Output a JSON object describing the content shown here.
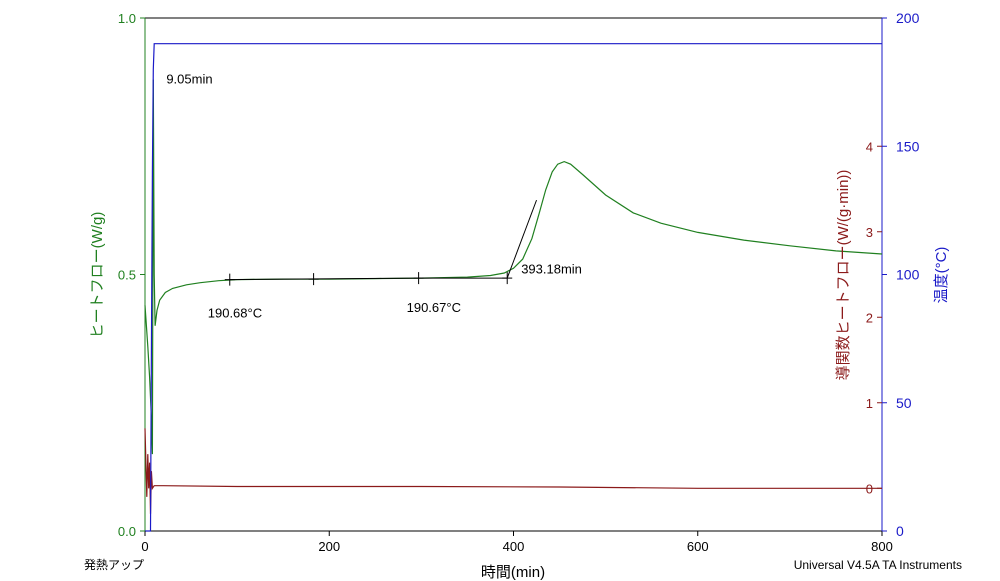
{
  "chart_data": {
    "type": "line",
    "xlabel": "時間(min)",
    "xlim": [
      0,
      800
    ],
    "x_ticks": [
      "0",
      "200",
      "400",
      "600",
      "800"
    ],
    "axes": {
      "left": {
        "label": "ヒートフロー(W/g)",
        "range": [
          0.0,
          1.0
        ],
        "ticks": [
          "0.0",
          "0.5",
          "1.0"
        ],
        "color": "#208020"
      },
      "right_inner": {
        "label": "導関数ヒートフロー(W/(g·min))",
        "range": [
          -0.5,
          5.5
        ],
        "ticks": [
          "0",
          "1",
          "2",
          "3",
          "4"
        ],
        "color": "#8b1a1a"
      },
      "right_outer": {
        "label": "温度(°C)",
        "range": [
          0,
          200
        ],
        "ticks": [
          "0",
          "50",
          "100",
          "150",
          "200"
        ],
        "color": "#1a1ac8"
      }
    },
    "series": [
      {
        "axis": "left",
        "color": "#208020",
        "points": [
          [
            0,
            0.44
          ],
          [
            3,
            0.36
          ],
          [
            5,
            0.3
          ],
          [
            7,
            0.22
          ],
          [
            8,
            0.15
          ],
          [
            9.05,
            0.88
          ],
          [
            10,
            0.5
          ],
          [
            11,
            0.4
          ],
          [
            13,
            0.43
          ],
          [
            16,
            0.45
          ],
          [
            22,
            0.465
          ],
          [
            30,
            0.473
          ],
          [
            45,
            0.48
          ],
          [
            60,
            0.484
          ],
          [
            80,
            0.488
          ],
          [
            100,
            0.49
          ],
          [
            150,
            0.491
          ],
          [
            200,
            0.491
          ],
          [
            250,
            0.492
          ],
          [
            300,
            0.493
          ],
          [
            350,
            0.495
          ],
          [
            375,
            0.498
          ],
          [
            390,
            0.503
          ],
          [
            400,
            0.512
          ],
          [
            410,
            0.53
          ],
          [
            420,
            0.57
          ],
          [
            428,
            0.62
          ],
          [
            435,
            0.665
          ],
          [
            442,
            0.7
          ],
          [
            448,
            0.715
          ],
          [
            455,
            0.72
          ],
          [
            462,
            0.715
          ],
          [
            475,
            0.695
          ],
          [
            500,
            0.655
          ],
          [
            530,
            0.62
          ],
          [
            560,
            0.6
          ],
          [
            600,
            0.582
          ],
          [
            650,
            0.567
          ],
          [
            700,
            0.556
          ],
          [
            750,
            0.546
          ],
          [
            800,
            0.54
          ]
        ]
      },
      {
        "axis": "right_inner",
        "color": "#8b1a1a",
        "points": [
          [
            0,
            0.7
          ],
          [
            2,
            -0.1
          ],
          [
            3,
            0.4
          ],
          [
            4,
            0.0
          ],
          [
            5,
            0.3
          ],
          [
            6,
            -0.3
          ],
          [
            7,
            0.2
          ],
          [
            8,
            0.0
          ],
          [
            10,
            0.03
          ],
          [
            20,
            0.03
          ],
          [
            100,
            0.02
          ],
          [
            300,
            0.02
          ],
          [
            450,
            0.015
          ],
          [
            600,
            0.0
          ],
          [
            800,
            0.0
          ]
        ]
      },
      {
        "axis": "right_outer",
        "color": "#1a1ac8",
        "points": [
          [
            0,
            0
          ],
          [
            6,
            0
          ],
          [
            7,
            70
          ],
          [
            8,
            140
          ],
          [
            9,
            180
          ],
          [
            10,
            190
          ],
          [
            800,
            190
          ]
        ]
      }
    ],
    "annotations": [
      {
        "text": "9.05min",
        "x": 9.05,
        "y": 0.88
      },
      {
        "text": "190.68°C",
        "x": 92,
        "y": 0.49
      },
      {
        "text": "190.67°C",
        "x": 297,
        "y": 0.493
      },
      {
        "text": "393.18min",
        "x": 393.18,
        "y": 0.49
      }
    ],
    "analysis_markers": [
      {
        "x1": 92,
        "y1": 0.49,
        "x2": 297,
        "y2": 0.493
      },
      {
        "x1": 183,
        "y1": 0.491,
        "x2": 183,
        "y2": 0.491
      },
      {
        "x1": 297,
        "y1": 0.493,
        "x2": 393.18,
        "y2": 0.493
      },
      {
        "x1": 393.18,
        "y1": 0.493,
        "x2": 425,
        "y2": 0.645
      }
    ]
  },
  "footer": {
    "left": "発熱アップ",
    "right": "Universal V4.5A TA Instruments"
  }
}
